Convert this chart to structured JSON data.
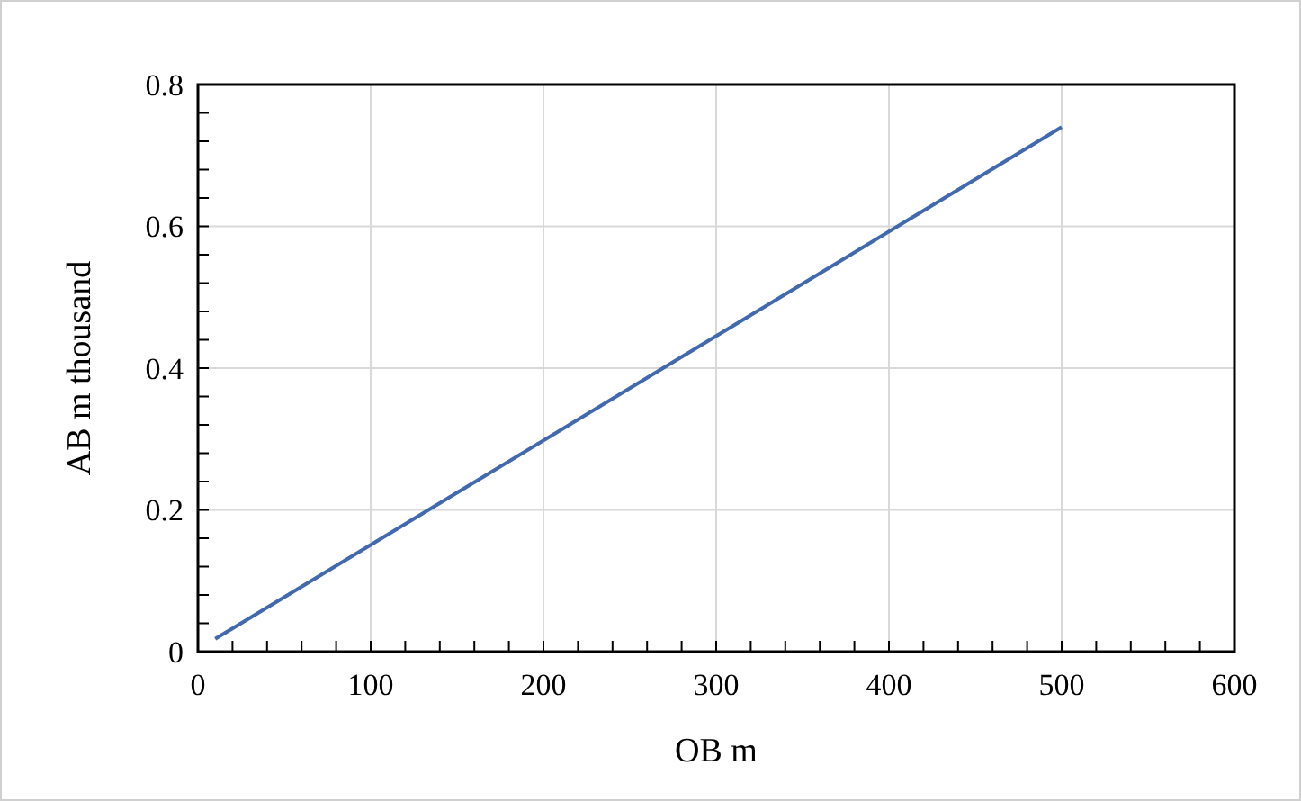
{
  "chart_data": {
    "type": "line",
    "xlabel": "OB m",
    "ylabel": "AB m thousand",
    "x": [
      10,
      500
    ],
    "series": [
      {
        "color": "#4169b0",
        "values": [
          0.018,
          0.74
        ]
      }
    ],
    "xlim": [
      0,
      600
    ],
    "ylim": [
      0,
      0.8
    ],
    "xticks": [
      0,
      {
        "value": 20,
        "label": null
      },
      {
        "value": 40,
        "label": null
      },
      {
        "value": 60,
        "label": null
      },
      {
        "value": 80,
        "label": null
      },
      100,
      {
        "value": 120,
        "label": null
      },
      {
        "value": 140,
        "label": null
      },
      {
        "value": 160,
        "label": null
      },
      {
        "value": 180,
        "label": null
      },
      200,
      {
        "value": 220,
        "label": null
      },
      {
        "value": 240,
        "label": null
      },
      {
        "value": 260,
        "label": null
      },
      {
        "value": 280,
        "label": null
      },
      300,
      {
        "value": 320,
        "label": null
      },
      {
        "value": 340,
        "label": null
      },
      {
        "value": 360,
        "label": null
      },
      {
        "value": 380,
        "label": null
      },
      400,
      {
        "value": 420,
        "label": null
      },
      {
        "value": 440,
        "label": null
      },
      {
        "value": 460,
        "label": null
      },
      {
        "value": 480,
        "label": null
      },
      500,
      {
        "value": 520,
        "label": null
      },
      {
        "value": 540,
        "label": null
      },
      {
        "value": 560,
        "label": null
      },
      {
        "value": 580,
        "label": null
      },
      600
    ],
    "yticks": [
      0,
      {
        "value": 0.04,
        "label": null
      },
      {
        "value": 0.08,
        "label": null
      },
      {
        "value": 0.12,
        "label": null
      },
      {
        "value": 0.16,
        "label": null
      },
      0.2,
      {
        "value": 0.24,
        "label": null
      },
      {
        "value": 0.28,
        "label": null
      },
      {
        "value": 0.32,
        "label": null
      },
      {
        "value": 0.36,
        "label": null
      },
      0.4,
      {
        "value": 0.44,
        "label": null
      },
      {
        "value": 0.48,
        "label": null
      },
      {
        "value": 0.52,
        "label": null
      },
      {
        "value": 0.56,
        "label": null
      },
      0.6,
      {
        "value": 0.64,
        "label": null
      },
      {
        "value": 0.68,
        "label": null
      },
      {
        "value": 0.72,
        "label": null
      },
      {
        "value": 0.76,
        "label": null
      },
      0.8
    ],
    "grid": true,
    "line_style": "solid"
  }
}
